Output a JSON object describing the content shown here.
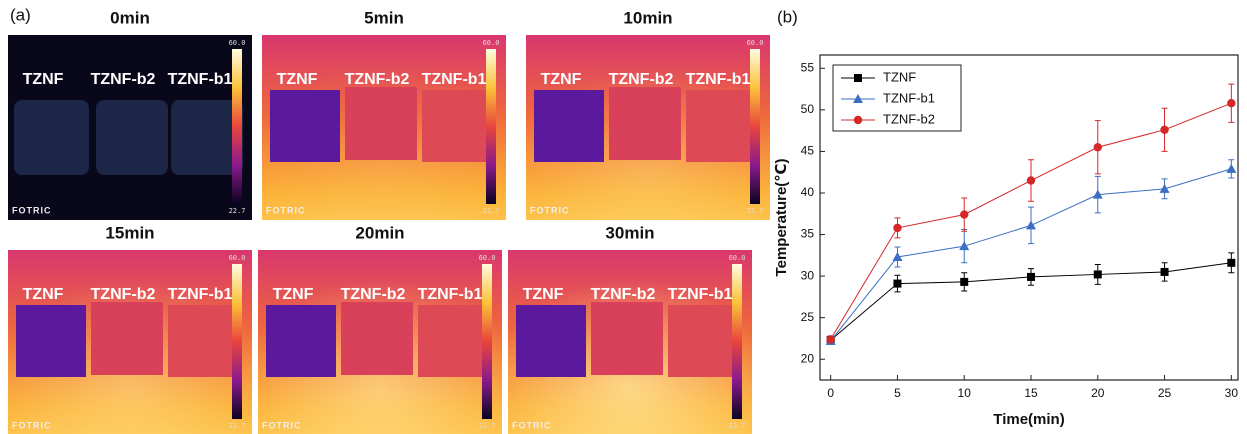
{
  "panel_a": {
    "label": "(a)",
    "images": [
      {
        "time": "0min",
        "labels": [
          "TZNF",
          "TZNF-b2",
          "TZNF-b1"
        ],
        "scale_max": "60.0",
        "scale_min": "22.7",
        "brand": "FOTRIC"
      },
      {
        "time": "5min",
        "labels": [
          "TZNF",
          "TZNF-b2",
          "TZNF-b1"
        ],
        "scale_max": "60.0",
        "scale_min": "22.7",
        "brand": "FOTRIC"
      },
      {
        "time": "10min",
        "labels": [
          "TZNF",
          "TZNF-b2",
          "TZNF-b1"
        ],
        "scale_max": "60.0",
        "scale_min": "22.7",
        "brand": "FOTRIC"
      },
      {
        "time": "15min",
        "labels": [
          "TZNF",
          "TZNF-b2",
          "TZNF-b1"
        ],
        "scale_max": "60.0",
        "scale_min": "22.7",
        "brand": "FOTRIC"
      },
      {
        "time": "20min",
        "labels": [
          "TZNF",
          "TZNF-b2",
          "TZNF-b1"
        ],
        "scale_max": "60.0",
        "scale_min": "22.7",
        "brand": "FOTRIC"
      },
      {
        "time": "30min",
        "labels": [
          "TZNF",
          "TZNF-b2",
          "TZNF-b1"
        ],
        "scale_max": "60.0",
        "scale_min": "22.7",
        "brand": "FOTRIC"
      }
    ]
  },
  "chart_data": {
    "type": "line",
    "title": "(b)",
    "x_label": "Time(min)",
    "y_label": "Temperature(℃)",
    "x": [
      0,
      5,
      10,
      15,
      20,
      25,
      30
    ],
    "series": [
      {
        "name": "TZNF",
        "color": "#000000",
        "marker": "square",
        "values": [
          22.3,
          29.1,
          29.3,
          29.9,
          30.2,
          30.5,
          31.6
        ],
        "errors": [
          0.5,
          1.0,
          1.1,
          1.0,
          1.2,
          1.1,
          1.2
        ]
      },
      {
        "name": "TZNF-b1",
        "color": "#3a6fc4",
        "marker": "triangle",
        "values": [
          22.2,
          32.3,
          33.6,
          36.1,
          39.8,
          40.5,
          42.9
        ],
        "errors": [
          0.4,
          1.2,
          2.0,
          2.2,
          2.2,
          1.2,
          1.1
        ]
      },
      {
        "name": "TZNF-b2",
        "color": "#d62728",
        "marker": "circle",
        "values": [
          22.4,
          35.8,
          37.4,
          41.5,
          45.5,
          47.6,
          50.8
        ],
        "errors": [
          0.4,
          1.2,
          2.0,
          2.5,
          3.2,
          2.6,
          2.3
        ]
      }
    ],
    "xlim": [
      -0.8,
      30.5
    ],
    "ylim": [
      17.5,
      56.6
    ],
    "xticks": [
      0,
      5,
      10,
      15,
      20,
      25,
      30
    ],
    "yticks": [
      20,
      25,
      30,
      35,
      40,
      45,
      50,
      55
    ],
    "legend": "upper left",
    "grid": false
  }
}
